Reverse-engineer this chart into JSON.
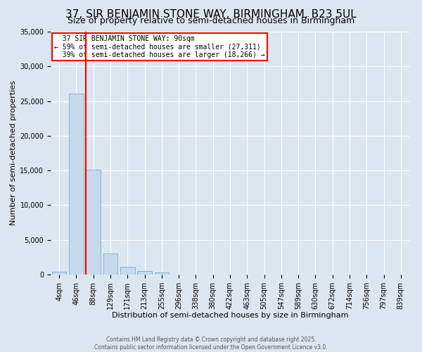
{
  "title": "37, SIR BENJAMIN STONE WAY, BIRMINGHAM, B23 5UL",
  "subtitle": "Size of property relative to semi-detached houses in Birmingham",
  "xlabel": "Distribution of semi-detached houses by size in Birmingham",
  "ylabel": "Number of semi-detached properties",
  "footer1": "Contains HM Land Registry data © Crown copyright and database right 2025.",
  "footer2": "Contains public sector information licensed under the Open Government Licence v3.0.",
  "bin_labels": [
    "4sqm",
    "46sqm",
    "88sqm",
    "129sqm",
    "171sqm",
    "213sqm",
    "255sqm",
    "296sqm",
    "338sqm",
    "380sqm",
    "422sqm",
    "463sqm",
    "505sqm",
    "547sqm",
    "589sqm",
    "630sqm",
    "672sqm",
    "714sqm",
    "756sqm",
    "797sqm",
    "839sqm"
  ],
  "bar_values": [
    400,
    26100,
    15100,
    3050,
    1100,
    480,
    280,
    0,
    0,
    0,
    0,
    0,
    0,
    0,
    0,
    0,
    0,
    0,
    0,
    0,
    0
  ],
  "bar_color": "#c6d9ea",
  "bar_edgecolor": "#7aaac8",
  "vline_color": "red",
  "vline_x_index": 2,
  "annotation_line1": "  37 SIR BENJAMIN STONE WAY: 90sqm",
  "annotation_line2": "← 59% of semi-detached houses are smaller (27,311)",
  "annotation_line3": "  39% of semi-detached houses are larger (18,266) →",
  "annotation_box_facecolor": "white",
  "annotation_box_edgecolor": "red",
  "ylim": [
    0,
    35000
  ],
  "yticks": [
    0,
    5000,
    10000,
    15000,
    20000,
    25000,
    30000,
    35000
  ],
  "background_color": "#dce6f0",
  "plot_background": "#dce6f0",
  "grid_color": "white",
  "title_fontsize": 11,
  "subtitle_fontsize": 9,
  "ylabel_fontsize": 8,
  "xlabel_fontsize": 8,
  "tick_fontsize": 7,
  "footer_fontsize": 5.5
}
